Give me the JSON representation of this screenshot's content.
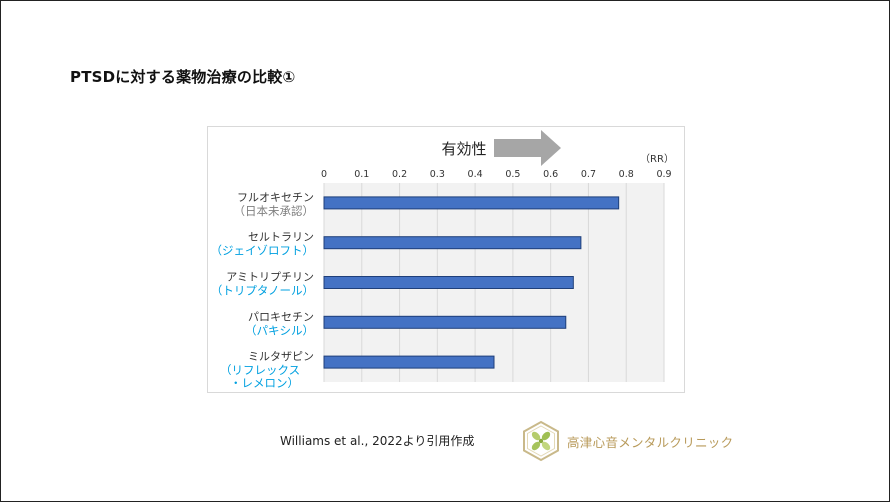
{
  "slide": {
    "title": "PTSDに対する薬物治療の比較①",
    "citation": "Williams  et al., 2022より引用作成",
    "clinic_name": "高津心音メンタルクリニック"
  },
  "chart_data": {
    "type": "bar",
    "orientation": "horizontal",
    "categories": [
      {
        "name": "フルオキセチン",
        "sub": [
          "（日本未承認）"
        ]
      },
      {
        "name": "セルトラリン",
        "sub": [
          "（ジェイゾロフト）"
        ]
      },
      {
        "name": "アミトリプチリン",
        "sub": [
          "（トリプタノール）"
        ]
      },
      {
        "name": "パロキセチン",
        "sub": [
          "（パキシル）"
        ]
      },
      {
        "name": "ミルタザピン",
        "sub": [
          "（リフレックス",
          "・レメロン）"
        ]
      }
    ],
    "values": [
      0.78,
      0.68,
      0.66,
      0.64,
      0.45
    ],
    "xlim": [
      0,
      0.9
    ],
    "ticks": [
      0,
      0.1,
      0.2,
      0.3,
      0.4,
      0.5,
      0.6,
      0.7,
      0.8,
      0.9
    ],
    "tick_labels": [
      "0",
      "0.1",
      "0.2",
      "0.3",
      "0.4",
      "0.5",
      "0.6",
      "0.7",
      "0.8",
      "0.9"
    ],
    "unit_label": "（RR）",
    "arrow_label": "有効性",
    "axis_position": "top",
    "grid": true,
    "colors": {
      "bar": "#4472c4",
      "bar_edge": "#1f3f7a",
      "plot_bg": "#f2f2f2",
      "grid": "#d9d9d9",
      "arrow": "#a6a6a6",
      "sub_label": "#00a0e0",
      "sub_label_unapproved": "#7f7f7f"
    }
  }
}
